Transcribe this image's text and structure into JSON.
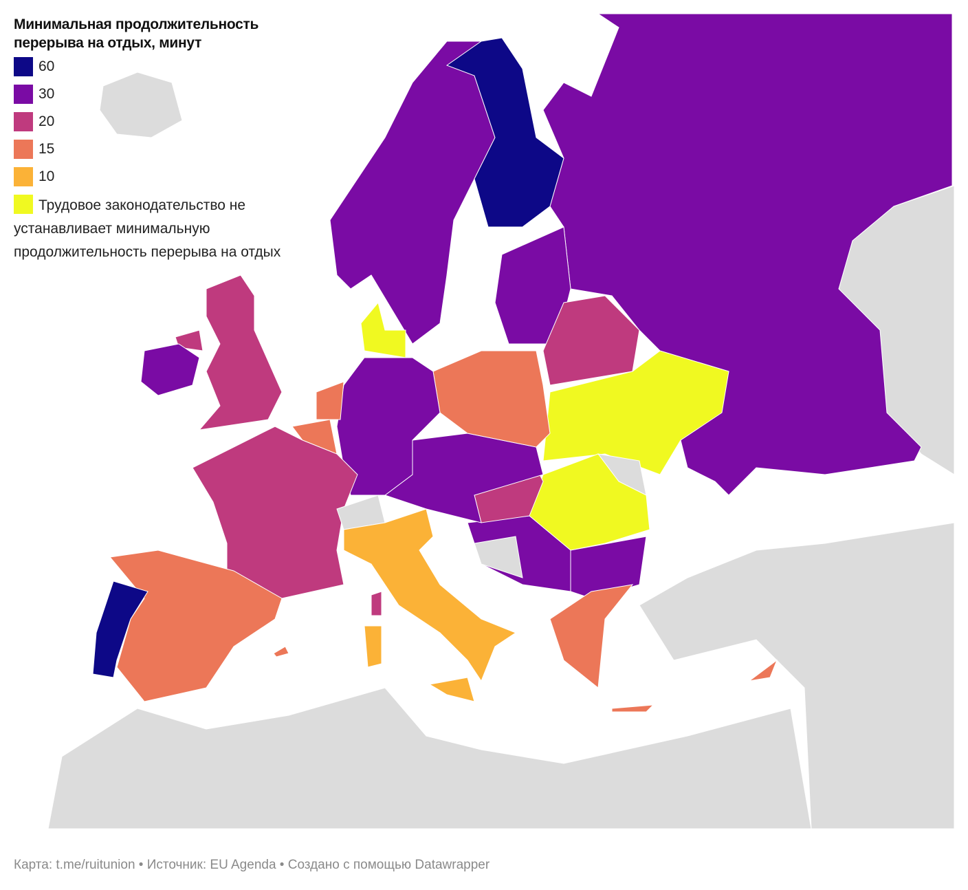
{
  "legend": {
    "title": "Минимальная продолжительность перерыва на отдых, минут",
    "items": [
      {
        "label": "60",
        "color": "#0d0887"
      },
      {
        "label": "30",
        "color": "#7a0ba4"
      },
      {
        "label": "20",
        "color": "#bf3a7e"
      },
      {
        "label": "15",
        "color": "#ec7758"
      },
      {
        "label": "10",
        "color": "#fbb237"
      },
      {
        "label": "Трудовое законодательство не устанавливает минимальную продолжительность перерыва на отдых",
        "color": "#f0f921"
      }
    ]
  },
  "footer": "Карта: t.me/ruitunion • Источник: EU Agenda • Создано с помощью Datawrapper"
}
